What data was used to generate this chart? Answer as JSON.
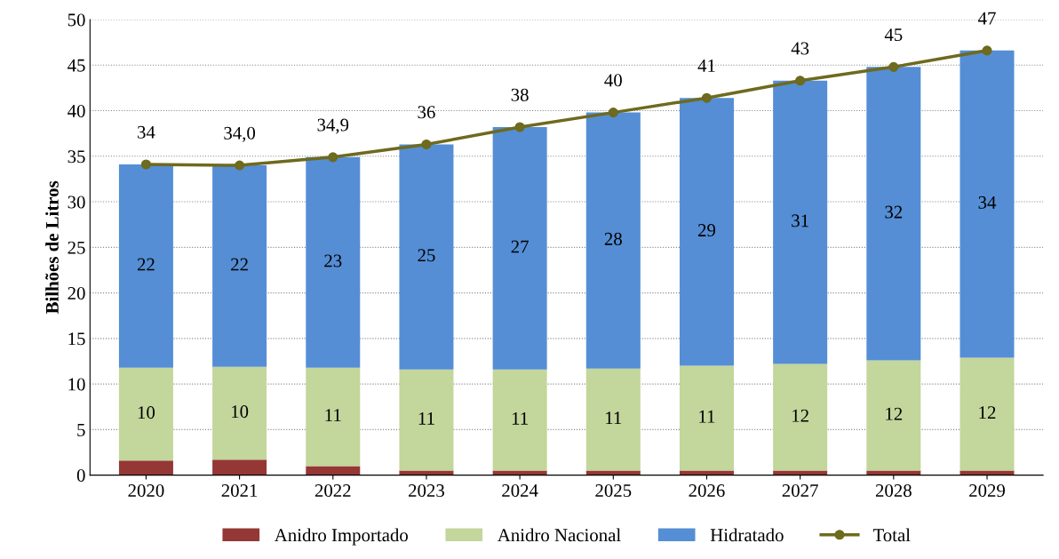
{
  "chart_data": {
    "type": "bar",
    "stacked": true,
    "ylabel": "Bilhões de Litros",
    "categories": [
      "2020",
      "2021",
      "2022",
      "2023",
      "2024",
      "2025",
      "2026",
      "2027",
      "2028",
      "2029"
    ],
    "series": [
      {
        "name": "Anidro Importado",
        "color": "#953735",
        "values": [
          1.6,
          1.7,
          1.0,
          0.5,
          0.5,
          0.5,
          0.5,
          0.5,
          0.5,
          0.5
        ]
      },
      {
        "name": "Anidro Nacional",
        "color": "#c3d69b",
        "values": [
          10.2,
          10.2,
          10.8,
          11.1,
          11.1,
          11.2,
          11.5,
          11.7,
          12.1,
          12.4
        ],
        "value_labels": [
          "10",
          "10",
          "11",
          "11",
          "11",
          "11",
          "11",
          "12",
          "12",
          "12"
        ]
      },
      {
        "name": "Hidratado",
        "color": "#558ed5",
        "values": [
          22.3,
          22.1,
          23.1,
          24.7,
          26.6,
          28.1,
          29.4,
          31.1,
          32.2,
          33.7
        ],
        "value_labels": [
          "22",
          "22",
          "23",
          "25",
          "27",
          "28",
          "29",
          "31",
          "32",
          "34"
        ]
      },
      {
        "name": "Total",
        "type": "line",
        "color": "#6e6a1e",
        "marker": "circle",
        "values": [
          34.1,
          34.0,
          34.9,
          36.3,
          38.2,
          39.8,
          41.4,
          43.3,
          44.8,
          46.6
        ],
        "value_labels": [
          "34",
          "34,0",
          "34,9",
          "36",
          "38",
          "40",
          "41",
          "43",
          "45",
          "47"
        ]
      }
    ],
    "ylim": [
      0,
      50
    ],
    "yticks": [
      0,
      5,
      10,
      15,
      20,
      25,
      30,
      35,
      40,
      45,
      50
    ],
    "grid": "y",
    "legend": "bottom"
  }
}
